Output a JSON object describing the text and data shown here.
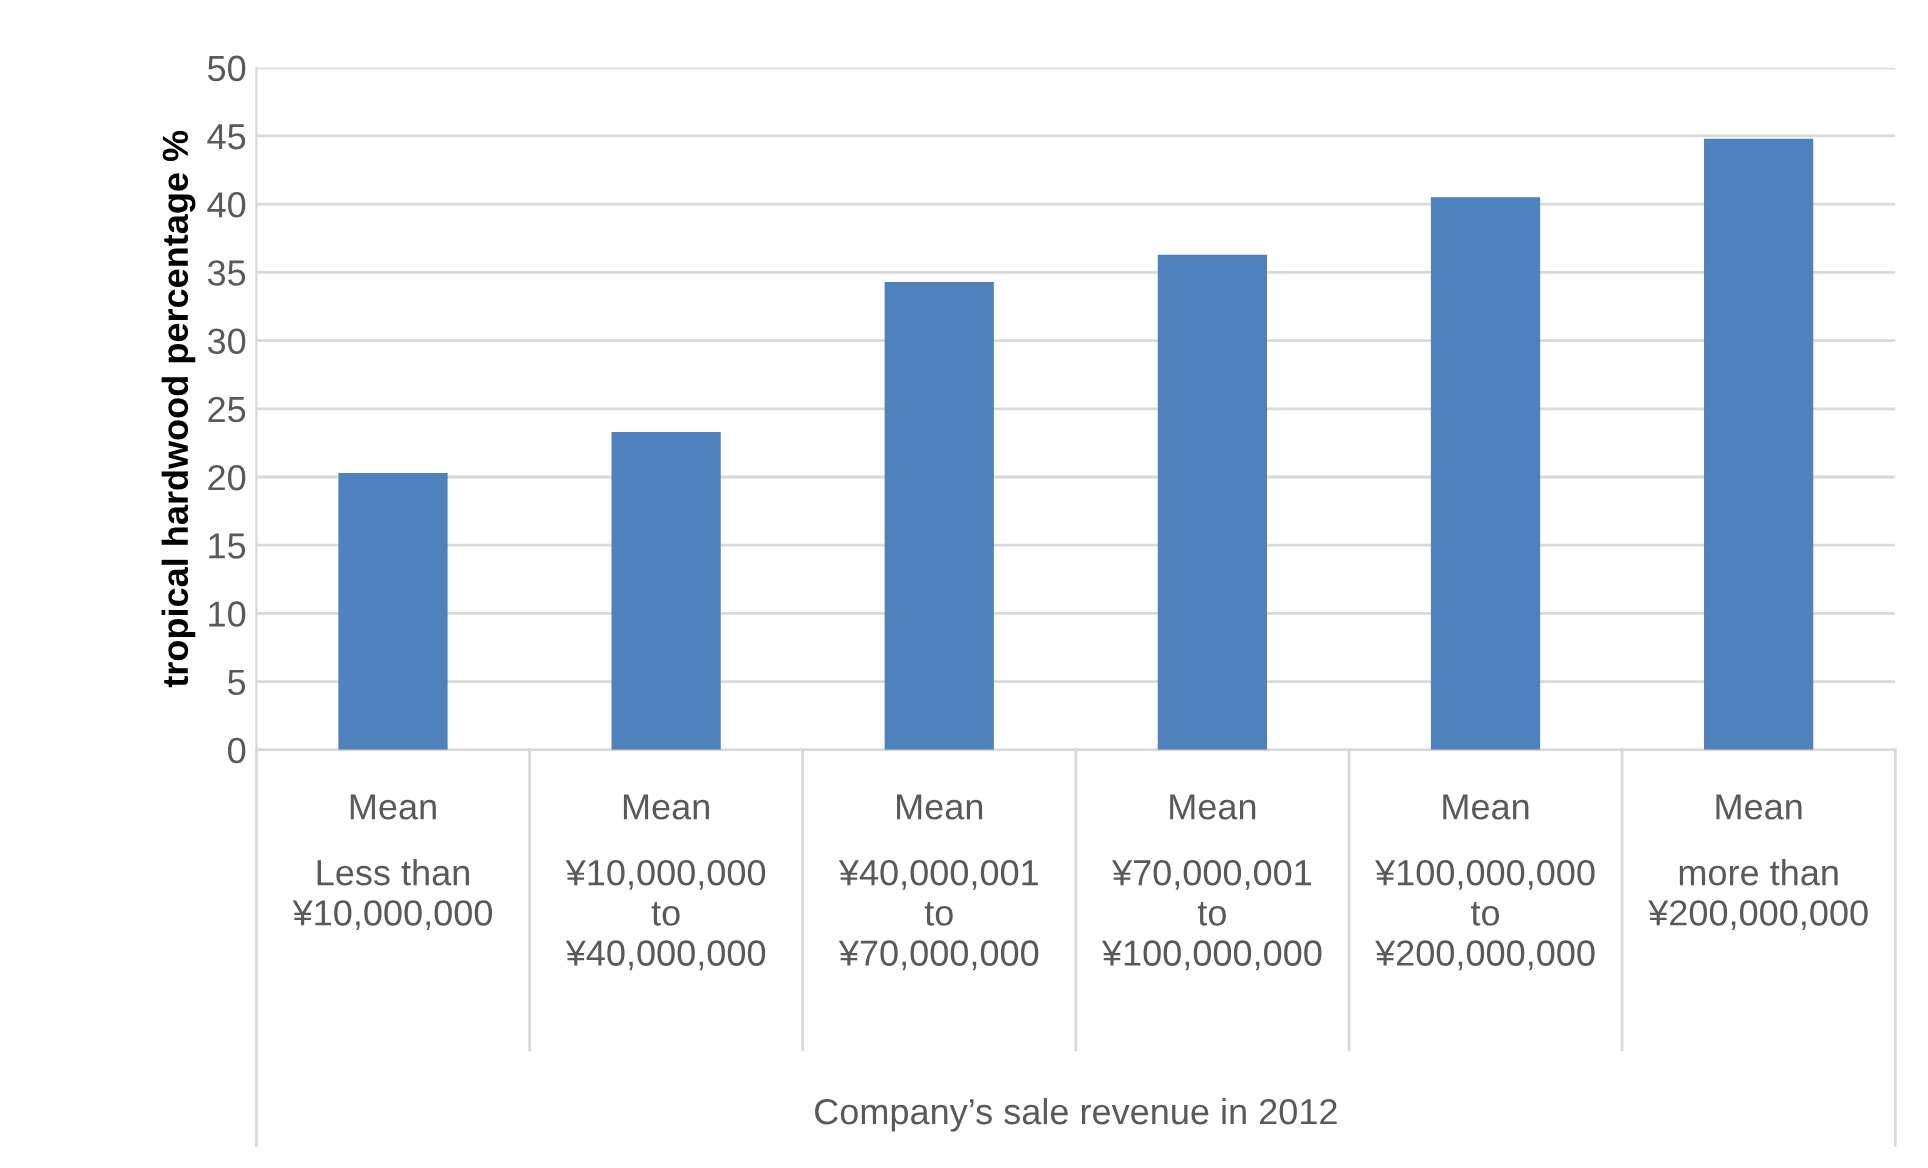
{
  "chart_data": {
    "type": "bar",
    "categories": [
      "Mean\nLess than\n¥10,000,000",
      "Mean\n¥10,000,000\nto\n¥40,000,000",
      "Mean\n¥40,000,001\nto\n¥70,000,000",
      "Mean\n¥70,000,001\nto\n¥100,000,000",
      "Mean\n¥100,000,000\nto\n¥200,000,000",
      "Mean\nmore than\n¥200,000,000"
    ],
    "values": [
      20.3,
      23.3,
      34.3,
      36.3,
      40.5,
      44.8
    ],
    "color": "#4f81bd",
    "xlabel": "Company’s sale revenue in 2012",
    "ylabel": "tropical hardwood percentage %",
    "ylim": [
      0,
      50
    ],
    "yticks": [
      0,
      5,
      10,
      15,
      20,
      25,
      30,
      35,
      40,
      45,
      50
    ],
    "grid": "y",
    "legend": false
  }
}
